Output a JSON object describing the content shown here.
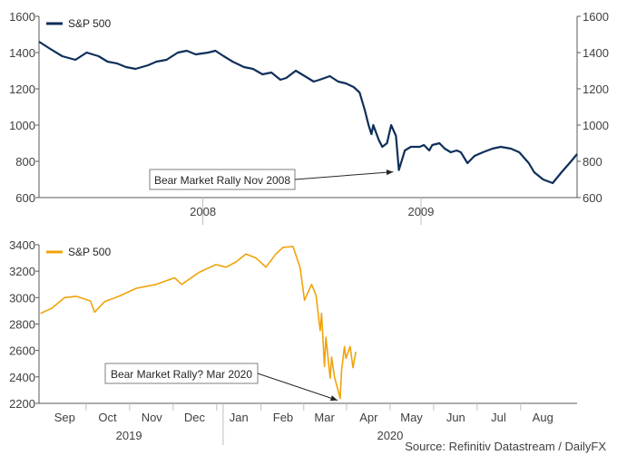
{
  "source": "Source: Refinitiv Datastream / DailyFX",
  "chart_data": [
    {
      "type": "line",
      "legend": {
        "position": "top-left"
      },
      "grid": false,
      "ylim": [
        600,
        1600
      ],
      "yticks": [
        600,
        800,
        1000,
        1200,
        1400,
        1600
      ],
      "ytick_labels": [
        "600",
        "800",
        "1000",
        "1200",
        "1400",
        "1600"
      ],
      "y_axis_both_sides": true,
      "x_range": [
        "2007-04-01",
        "2009-09-20"
      ],
      "year_labels": [
        {
          "label": "2008",
          "x": "2008-01-01"
        },
        {
          "label": "2009",
          "x": "2009-01-01"
        }
      ],
      "color": "#0e2f5a",
      "annotation": {
        "text": "Bear Market Rally Nov 2008",
        "x": "2008-11-20",
        "y": 752
      },
      "series": [
        {
          "name": "S&P 500",
          "x": [
            "2007-04-01",
            "2007-04-20",
            "2007-05-10",
            "2007-06-01",
            "2007-06-20",
            "2007-07-10",
            "2007-07-25",
            "2007-08-10",
            "2007-08-25",
            "2007-09-10",
            "2007-10-01",
            "2007-10-15",
            "2007-11-01",
            "2007-11-20",
            "2007-12-05",
            "2007-12-20",
            "2008-01-10",
            "2008-01-22",
            "2008-02-05",
            "2008-02-20",
            "2008-03-10",
            "2008-03-25",
            "2008-04-10",
            "2008-04-25",
            "2008-05-10",
            "2008-05-20",
            "2008-06-05",
            "2008-06-20",
            "2008-07-05",
            "2008-07-15",
            "2008-08-01",
            "2008-08-15",
            "2008-08-28",
            "2008-09-10",
            "2008-09-20",
            "2008-09-29",
            "2008-10-05",
            "2008-10-10",
            "2008-10-13",
            "2008-10-22",
            "2008-10-28",
            "2008-11-05",
            "2008-11-12",
            "2008-11-20",
            "2008-11-25",
            "2008-12-05",
            "2008-12-15",
            "2008-12-30",
            "2009-01-06",
            "2009-01-15",
            "2009-01-20",
            "2009-02-01",
            "2009-02-10",
            "2009-02-20",
            "2009-03-02",
            "2009-03-09",
            "2009-03-20",
            "2009-04-01",
            "2009-04-15",
            "2009-05-01",
            "2009-05-15",
            "2009-06-01",
            "2009-06-15",
            "2009-07-01",
            "2009-07-10",
            "2009-07-25",
            "2009-08-10",
            "2009-08-25",
            "2009-09-10",
            "2009-09-20"
          ],
          "values": [
            1460,
            1420,
            1380,
            1360,
            1400,
            1380,
            1350,
            1340,
            1320,
            1310,
            1330,
            1350,
            1360,
            1400,
            1410,
            1390,
            1400,
            1410,
            1380,
            1350,
            1320,
            1310,
            1280,
            1290,
            1250,
            1260,
            1300,
            1270,
            1240,
            1250,
            1270,
            1240,
            1230,
            1210,
            1180,
            1080,
            1000,
            950,
            1000,
            920,
            880,
            900,
            1000,
            940,
            752,
            860,
            880,
            880,
            890,
            860,
            890,
            900,
            870,
            850,
            860,
            850,
            790,
            830,
            850,
            870,
            880,
            870,
            850,
            790,
            740,
            700,
            680,
            740,
            800,
            840
          ]
        }
      ]
    },
    {
      "type": "line",
      "legend": {
        "position": "top-left"
      },
      "grid": false,
      "ylim": [
        2200,
        3400
      ],
      "yticks": [
        2200,
        2400,
        2600,
        2800,
        3000,
        3200,
        3400
      ],
      "ytick_labels": [
        "2200",
        "2400",
        "2600",
        "2800",
        "3000",
        "3200",
        "3400"
      ],
      "x_range": [
        "2019-08-25",
        "2020-09-05"
      ],
      "month_labels": [
        {
          "label": "Sep",
          "x": "2019-09-12"
        },
        {
          "label": "Oct",
          "x": "2019-10-12"
        },
        {
          "label": "Nov",
          "x": "2019-11-12"
        },
        {
          "label": "Dec",
          "x": "2019-12-12"
        },
        {
          "label": "Jan",
          "x": "2020-01-12"
        },
        {
          "label": "Feb",
          "x": "2020-02-12"
        },
        {
          "label": "Mar",
          "x": "2020-03-12"
        },
        {
          "label": "Apr",
          "x": "2020-04-12"
        },
        {
          "label": "May",
          "x": "2020-05-12"
        },
        {
          "label": "Jun",
          "x": "2020-06-12"
        },
        {
          "label": "Jul",
          "x": "2020-07-12"
        },
        {
          "label": "Aug",
          "x": "2020-08-12"
        }
      ],
      "year_labels": [
        {
          "label": "2019",
          "x": "2019-10-27"
        },
        {
          "label": "2020",
          "x": "2020-04-27"
        }
      ],
      "color": "#f0a30a",
      "annotation": {
        "text": "Bear Market Rally? Mar 2020",
        "x": "2020-03-23",
        "y": 2237
      },
      "series": [
        {
          "name": "S&P 500",
          "x": [
            "2019-08-26",
            "2019-09-03",
            "2019-09-12",
            "2019-09-20",
            "2019-09-30",
            "2019-10-03",
            "2019-10-10",
            "2019-10-20",
            "2019-11-01",
            "2019-11-15",
            "2019-11-28",
            "2019-12-03",
            "2019-12-15",
            "2019-12-27",
            "2020-01-03",
            "2020-01-10",
            "2020-01-17",
            "2020-01-24",
            "2020-01-31",
            "2020-02-07",
            "2020-02-12",
            "2020-02-19",
            "2020-02-24",
            "2020-02-27",
            "2020-03-03",
            "2020-03-06",
            "2020-03-09",
            "2020-03-10",
            "2020-03-12",
            "2020-03-13",
            "2020-03-16",
            "2020-03-17",
            "2020-03-19",
            "2020-03-23",
            "2020-03-24",
            "2020-03-26",
            "2020-03-27",
            "2020-03-30",
            "2020-04-01",
            "2020-04-03"
          ],
          "values": [
            2880,
            2920,
            3000,
            3010,
            2975,
            2890,
            2970,
            3010,
            3070,
            3100,
            3150,
            3100,
            3190,
            3250,
            3230,
            3270,
            3330,
            3300,
            3230,
            3330,
            3380,
            3386,
            3225,
            2980,
            3100,
            3020,
            2750,
            2880,
            2480,
            2700,
            2390,
            2550,
            2400,
            2237,
            2450,
            2630,
            2540,
            2630,
            2470,
            2590
          ]
        }
      ]
    }
  ]
}
